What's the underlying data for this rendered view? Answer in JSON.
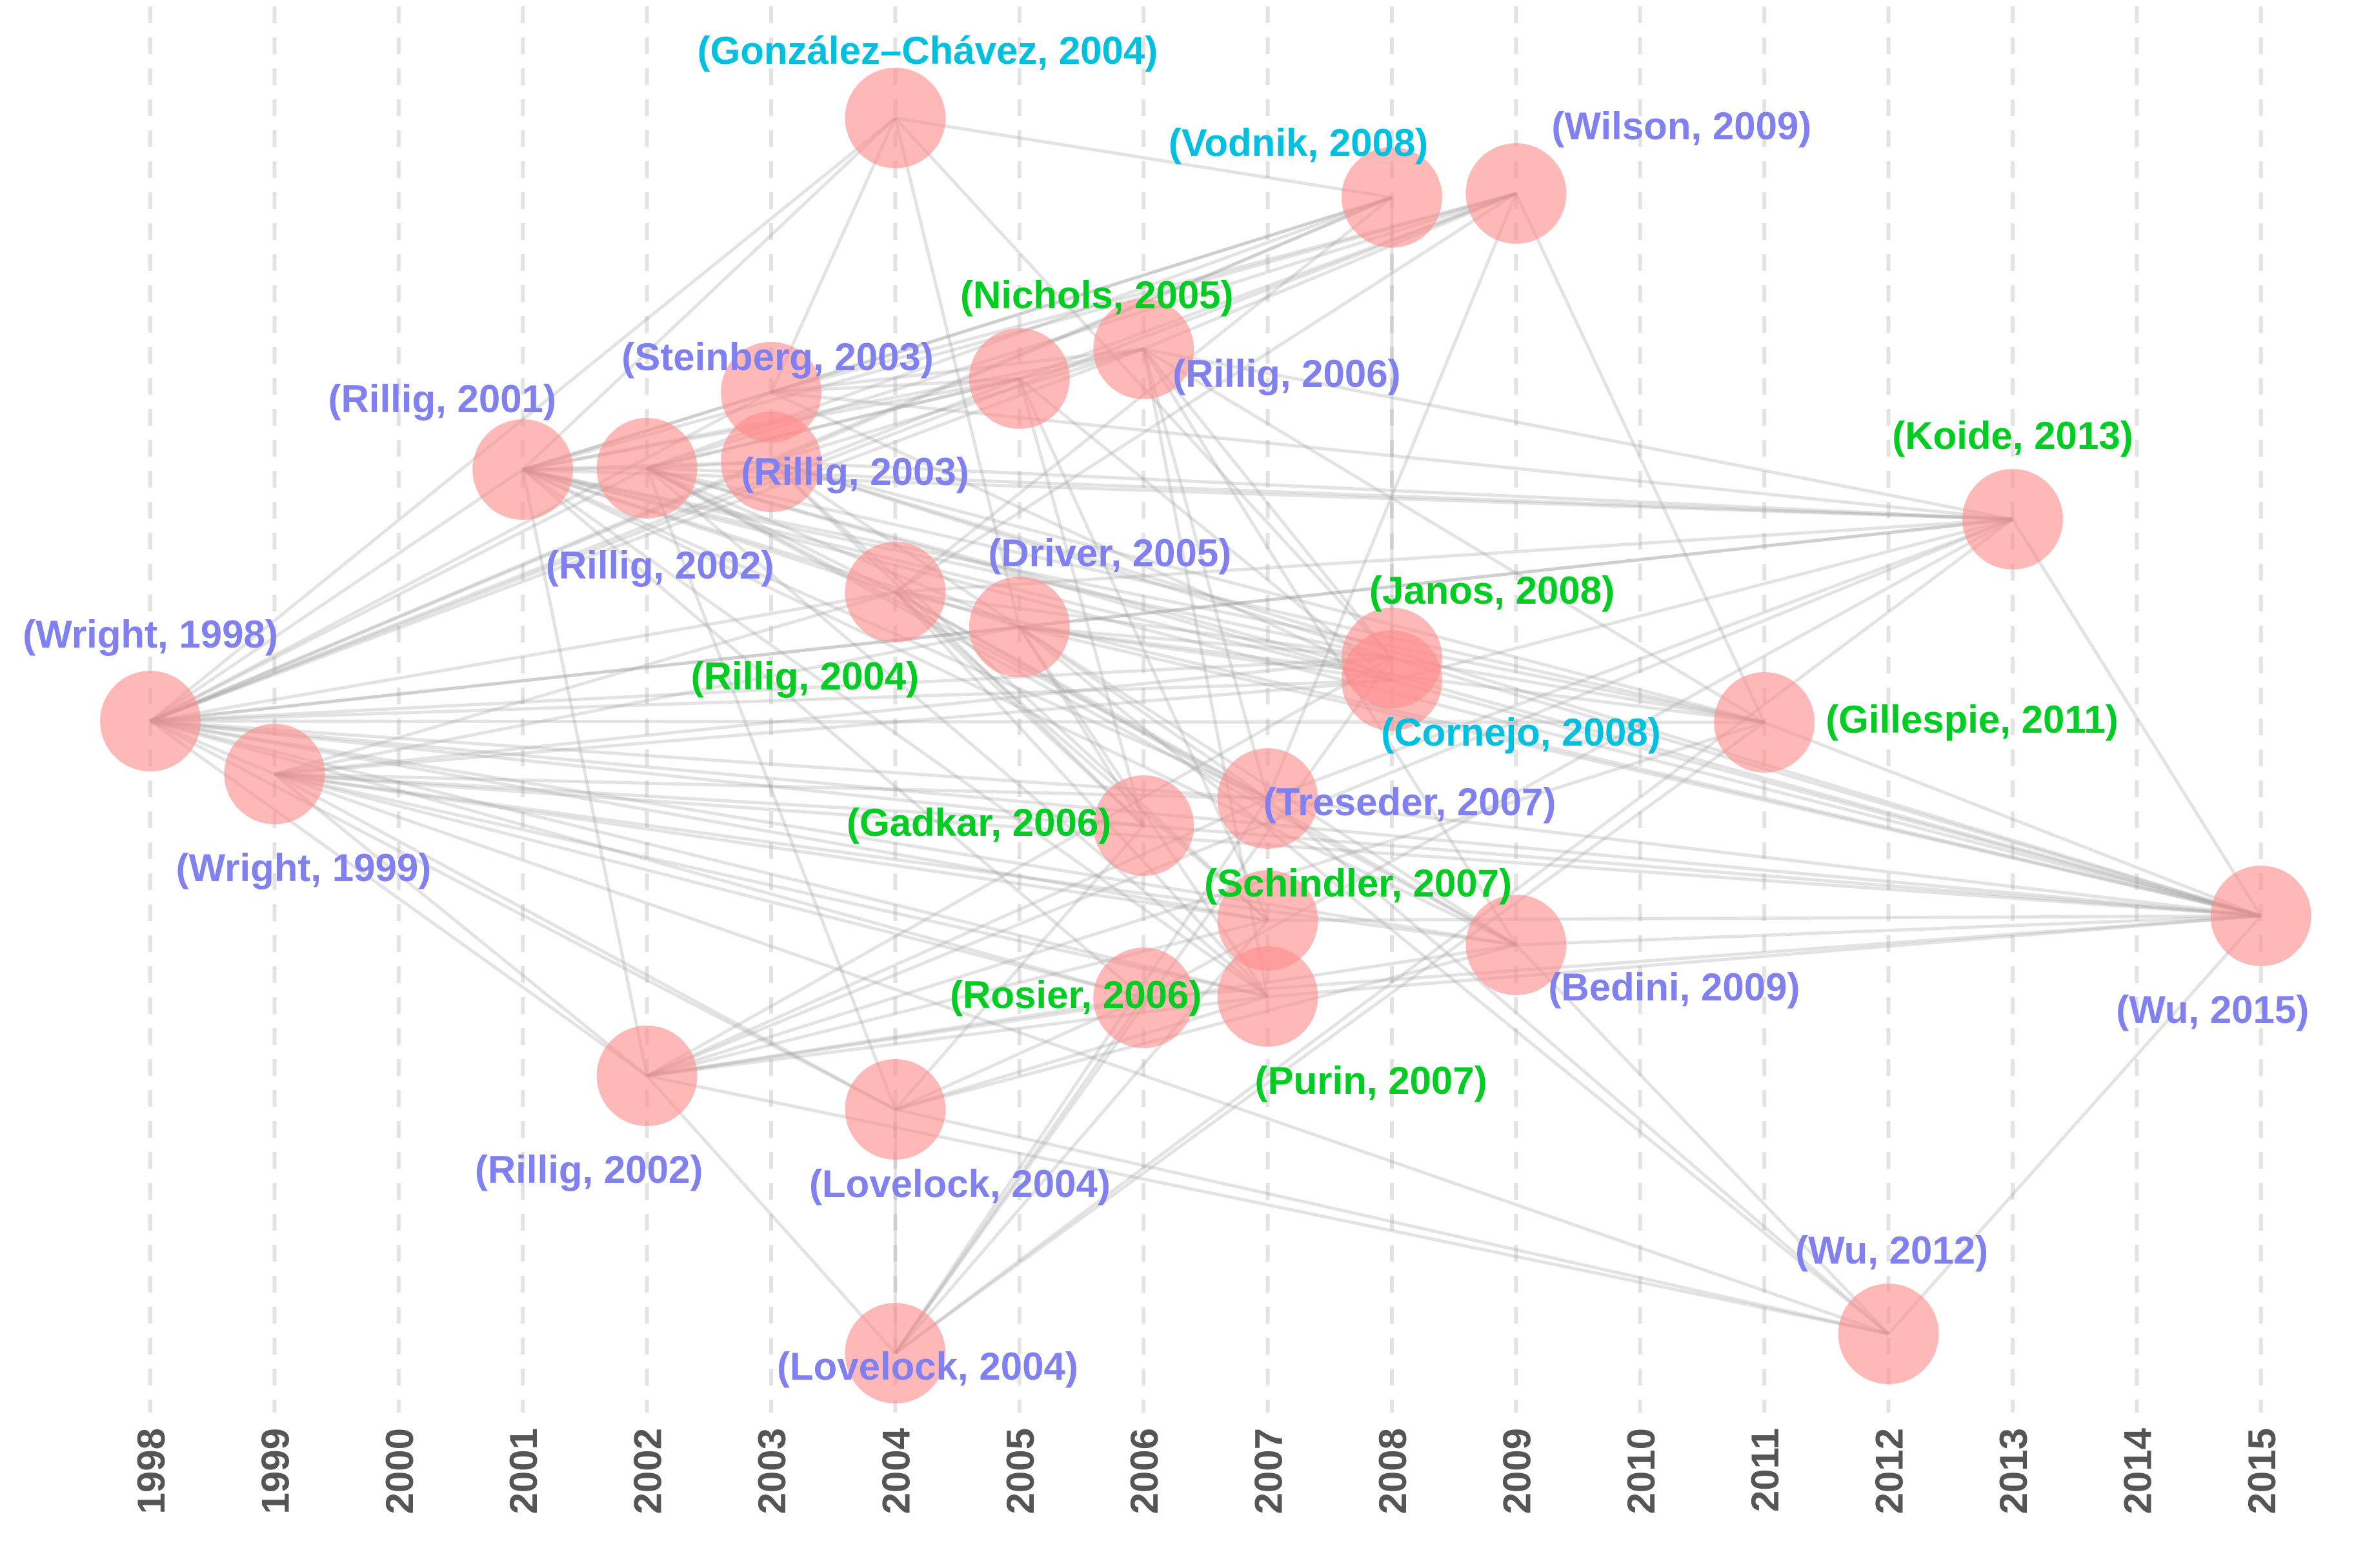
{
  "chart_data": {
    "type": "network",
    "title": "",
    "xlabel": "",
    "ylabel": "",
    "x_axis": {
      "min": 1998,
      "max": 2015,
      "ticks": [
        "1998",
        "1999",
        "2000",
        "2001",
        "2002",
        "2003",
        "2004",
        "2005",
        "2006",
        "2007",
        "2008",
        "2009",
        "2010",
        "2011",
        "2012",
        "2013",
        "2014",
        "2015"
      ]
    },
    "grid": true,
    "label_colors": {
      "blue": "#8080f0",
      "green": "#00cc22",
      "cyan": "#00c0e0"
    },
    "node_color": "#ff8c8c",
    "edge_color": "#9a9a9a",
    "nodes": [
      {
        "id": "wright1998",
        "label": "(Wright, 1998)",
        "year": 1998,
        "color": "blue"
      },
      {
        "id": "wright1999",
        "label": "(Wright, 1999)",
        "year": 1999,
        "color": "blue"
      },
      {
        "id": "rillig2001",
        "label": "(Rillig, 2001)",
        "year": 2001,
        "color": "blue"
      },
      {
        "id": "rillig2002a",
        "label": "(Rillig, 2002)",
        "year": 2002,
        "color": "blue"
      },
      {
        "id": "rillig2002b",
        "label": "(Rillig, 2002)",
        "year": 2002,
        "color": "blue"
      },
      {
        "id": "steinberg2003",
        "label": "(Steinberg, 2003)",
        "year": 2003,
        "color": "blue"
      },
      {
        "id": "rillig2003",
        "label": "(Rillig, 2003)",
        "year": 2003,
        "color": "blue"
      },
      {
        "id": "gonzalez2004",
        "label": "(González–Chávez, 2004)",
        "year": 2004,
        "color": "cyan"
      },
      {
        "id": "rillig2004",
        "label": "(Rillig, 2004)",
        "year": 2004,
        "color": "green"
      },
      {
        "id": "lovelock2004a",
        "label": "(Lovelock, 2004)",
        "year": 2004,
        "color": "blue"
      },
      {
        "id": "lovelock2004b",
        "label": "(Lovelock, 2004)",
        "year": 2004,
        "color": "blue"
      },
      {
        "id": "nichols2005",
        "label": "(Nichols, 2005)",
        "year": 2005,
        "color": "green"
      },
      {
        "id": "driver2005",
        "label": "(Driver, 2005)",
        "year": 2005,
        "color": "blue"
      },
      {
        "id": "rillig2006",
        "label": "(Rillig, 2006)",
        "year": 2006,
        "color": "blue"
      },
      {
        "id": "gadkar2006",
        "label": "(Gadkar, 2006)",
        "year": 2006,
        "color": "green"
      },
      {
        "id": "rosier2006",
        "label": "(Rosier, 2006)",
        "year": 2006,
        "color": "green"
      },
      {
        "id": "treseder2007",
        "label": "(Treseder, 2007)",
        "year": 2007,
        "color": "blue"
      },
      {
        "id": "schindler2007",
        "label": "(Schindler, 2007)",
        "year": 2007,
        "color": "green"
      },
      {
        "id": "purin2007",
        "label": "(Purin, 2007)",
        "year": 2007,
        "color": "green"
      },
      {
        "id": "vodnik2008",
        "label": "(Vodnik, 2008)",
        "year": 2008,
        "color": "cyan"
      },
      {
        "id": "janos2008",
        "label": "(Janos, 2008)",
        "year": 2008,
        "color": "green"
      },
      {
        "id": "cornejo2008",
        "label": "(Cornejo, 2008)",
        "year": 2008,
        "color": "cyan"
      },
      {
        "id": "wilson2009",
        "label": "(Wilson, 2009)",
        "year": 2009,
        "color": "blue"
      },
      {
        "id": "bedini2009",
        "label": "(Bedini, 2009)",
        "year": 2009,
        "color": "blue"
      },
      {
        "id": "gillespie2011",
        "label": "(Gillespie, 2011)",
        "year": 2011,
        "color": "green"
      },
      {
        "id": "wu2012",
        "label": "(Wu, 2012)",
        "year": 2012,
        "color": "blue"
      },
      {
        "id": "koide2013",
        "label": "(Koide, 2013)",
        "year": 2013,
        "color": "green"
      },
      {
        "id": "wu2015",
        "label": "(Wu, 2015)",
        "year": 2015,
        "color": "blue"
      }
    ],
    "edges": [
      [
        "wright1999",
        "wright1998"
      ],
      [
        "rillig2001",
        "wright1998"
      ],
      [
        "rillig2002a",
        "wright1998"
      ],
      [
        "rillig2002a",
        "rillig2001"
      ],
      [
        "rillig2002b",
        "wright1998"
      ],
      [
        "rillig2002b",
        "wright1999"
      ],
      [
        "rillig2002b",
        "rillig2001"
      ],
      [
        "steinberg2003",
        "wright1998"
      ],
      [
        "steinberg2003",
        "rillig2001"
      ],
      [
        "rillig2003",
        "wright1998"
      ],
      [
        "rillig2003",
        "rillig2001"
      ],
      [
        "rillig2003",
        "rillig2002a"
      ],
      [
        "gonzalez2004",
        "wright1998"
      ],
      [
        "gonzalez2004",
        "rillig2001"
      ],
      [
        "gonzalez2004",
        "steinberg2003"
      ],
      [
        "rillig2004",
        "wright1998"
      ],
      [
        "rillig2004",
        "wright1999"
      ],
      [
        "rillig2004",
        "rillig2001"
      ],
      [
        "rillig2004",
        "rillig2002a"
      ],
      [
        "lovelock2004a",
        "wright1998"
      ],
      [
        "lovelock2004a",
        "wright1999"
      ],
      [
        "lovelock2004a",
        "rillig2002a"
      ],
      [
        "lovelock2004b",
        "rillig2002b"
      ],
      [
        "lovelock2004b",
        "lovelock2004a"
      ],
      [
        "nichols2005",
        "wright1998"
      ],
      [
        "nichols2005",
        "rillig2001"
      ],
      [
        "nichols2005",
        "rillig2002a"
      ],
      [
        "nichols2005",
        "steinberg2003"
      ],
      [
        "driver2005",
        "wright1998"
      ],
      [
        "driver2005",
        "wright1999"
      ],
      [
        "driver2005",
        "rillig2001"
      ],
      [
        "driver2005",
        "rillig2002a"
      ],
      [
        "driver2005",
        "rillig2003"
      ],
      [
        "driver2005",
        "gonzalez2004"
      ],
      [
        "rillig2006",
        "wright1998"
      ],
      [
        "rillig2006",
        "rillig2001"
      ],
      [
        "rillig2006",
        "rillig2002a"
      ],
      [
        "rillig2006",
        "steinberg2003"
      ],
      [
        "rillig2006",
        "rillig2003"
      ],
      [
        "gadkar2006",
        "wright1998"
      ],
      [
        "gadkar2006",
        "wright1999"
      ],
      [
        "gadkar2006",
        "rillig2003"
      ],
      [
        "gadkar2006",
        "rillig2004"
      ],
      [
        "gadkar2006",
        "lovelock2004a"
      ],
      [
        "gadkar2006",
        "nichols2005"
      ],
      [
        "gadkar2006",
        "driver2005"
      ],
      [
        "rosier2006",
        "wright1998"
      ],
      [
        "rosier2006",
        "wright1999"
      ],
      [
        "rosier2006",
        "rillig2001"
      ],
      [
        "rosier2006",
        "rillig2002b"
      ],
      [
        "rosier2006",
        "lovelock2004a"
      ],
      [
        "rosier2006",
        "lovelock2004b"
      ],
      [
        "treseder2007",
        "wright1998"
      ],
      [
        "treseder2007",
        "wright1999"
      ],
      [
        "treseder2007",
        "rillig2001"
      ],
      [
        "treseder2007",
        "rillig2002a"
      ],
      [
        "treseder2007",
        "rillig2004"
      ],
      [
        "treseder2007",
        "driver2005"
      ],
      [
        "treseder2007",
        "rillig2006"
      ],
      [
        "treseder2007",
        "rillig2002b"
      ],
      [
        "treseder2007",
        "lovelock2004b"
      ],
      [
        "schindler2007",
        "wright1998"
      ],
      [
        "schindler2007",
        "wright1999"
      ],
      [
        "schindler2007",
        "rillig2003"
      ],
      [
        "schindler2007",
        "rillig2004"
      ],
      [
        "schindler2007",
        "nichols2005"
      ],
      [
        "schindler2007",
        "rillig2002b"
      ],
      [
        "schindler2007",
        "lovelock2004b"
      ],
      [
        "purin2007",
        "wright1998"
      ],
      [
        "purin2007",
        "wright1999"
      ],
      [
        "purin2007",
        "rillig2001"
      ],
      [
        "purin2007",
        "rillig2002a"
      ],
      [
        "purin2007",
        "rillig2004"
      ],
      [
        "purin2007",
        "driver2005"
      ],
      [
        "purin2007",
        "rillig2006"
      ],
      [
        "purin2007",
        "lovelock2004a"
      ],
      [
        "purin2007",
        "rillig2002b"
      ],
      [
        "vodnik2008",
        "wright1998"
      ],
      [
        "vodnik2008",
        "rillig2001"
      ],
      [
        "vodnik2008",
        "rillig2002a"
      ],
      [
        "vodnik2008",
        "steinberg2003"
      ],
      [
        "vodnik2008",
        "rillig2003"
      ],
      [
        "vodnik2008",
        "gonzalez2004"
      ],
      [
        "vodnik2008",
        "rillig2004"
      ],
      [
        "janos2008",
        "wright1998"
      ],
      [
        "janos2008",
        "wright1999"
      ],
      [
        "janos2008",
        "rillig2001"
      ],
      [
        "janos2008",
        "rillig2003"
      ],
      [
        "janos2008",
        "gonzalez2004"
      ],
      [
        "janos2008",
        "rillig2004"
      ],
      [
        "janos2008",
        "driver2005"
      ],
      [
        "janos2008",
        "rillig2006"
      ],
      [
        "janos2008",
        "rillig2002b"
      ],
      [
        "janos2008",
        "lovelock2004b"
      ],
      [
        "cornejo2008",
        "wright1998"
      ],
      [
        "cornejo2008",
        "wright1999"
      ],
      [
        "cornejo2008",
        "rillig2001"
      ],
      [
        "cornejo2008",
        "rillig2002a"
      ],
      [
        "cornejo2008",
        "steinberg2003"
      ],
      [
        "cornejo2008",
        "nichols2005"
      ],
      [
        "cornejo2008",
        "driver2005"
      ],
      [
        "cornejo2008",
        "vodnik2008"
      ],
      [
        "wilson2009",
        "wright1998"
      ],
      [
        "wilson2009",
        "rillig2001"
      ],
      [
        "wilson2009",
        "rillig2002a"
      ],
      [
        "wilson2009",
        "steinberg2003"
      ],
      [
        "wilson2009",
        "nichols2005"
      ],
      [
        "wilson2009",
        "rillig2004"
      ],
      [
        "wilson2009",
        "rillig2006"
      ],
      [
        "wilson2009",
        "treseder2007"
      ],
      [
        "bedini2009",
        "wright1998"
      ],
      [
        "bedini2009",
        "wright1999"
      ],
      [
        "bedini2009",
        "rillig2001"
      ],
      [
        "bedini2009",
        "rillig2002a"
      ],
      [
        "bedini2009",
        "rillig2004"
      ],
      [
        "bedini2009",
        "driver2005"
      ],
      [
        "bedini2009",
        "rillig2006"
      ],
      [
        "bedini2009",
        "lovelock2004a"
      ],
      [
        "bedini2009",
        "rillig2002b"
      ],
      [
        "gillespie2011",
        "wright1998"
      ],
      [
        "gillespie2011",
        "rillig2001"
      ],
      [
        "gillespie2011",
        "rillig2002a"
      ],
      [
        "gillespie2011",
        "rillig2003"
      ],
      [
        "gillespie2011",
        "driver2005"
      ],
      [
        "gillespie2011",
        "rillig2006"
      ],
      [
        "gillespie2011",
        "janos2008"
      ],
      [
        "gillespie2011",
        "wilson2009"
      ],
      [
        "gillespie2011",
        "rillig2002b"
      ],
      [
        "gillespie2011",
        "lovelock2004b"
      ],
      [
        "wu2012",
        "wright1999"
      ],
      [
        "wu2012",
        "rillig2002b"
      ],
      [
        "wu2012",
        "lovelock2004a"
      ],
      [
        "wu2012",
        "driver2005"
      ],
      [
        "wu2012",
        "treseder2007"
      ],
      [
        "wu2012",
        "bedini2009"
      ],
      [
        "koide2013",
        "wright1998"
      ],
      [
        "koide2013",
        "rillig2001"
      ],
      [
        "koide2013",
        "rillig2002a"
      ],
      [
        "koide2013",
        "rillig2003"
      ],
      [
        "koide2013",
        "steinberg2003"
      ],
      [
        "koide2013",
        "rillig2004"
      ],
      [
        "koide2013",
        "driver2005"
      ],
      [
        "koide2013",
        "rillig2006"
      ],
      [
        "koide2013",
        "treseder2007"
      ],
      [
        "koide2013",
        "cornejo2008"
      ],
      [
        "koide2013",
        "rosier2006"
      ],
      [
        "koide2013",
        "lovelock2004b"
      ],
      [
        "koide2013",
        "rillig2002b"
      ],
      [
        "wu2015",
        "wright1998"
      ],
      [
        "wu2015",
        "wright1999"
      ],
      [
        "wu2015",
        "rillig2001"
      ],
      [
        "wu2015",
        "rillig2002a"
      ],
      [
        "wu2015",
        "rillig2003"
      ],
      [
        "wu2015",
        "rillig2004"
      ],
      [
        "wu2015",
        "driver2005"
      ],
      [
        "wu2015",
        "gadkar2006"
      ],
      [
        "wu2015",
        "rosier2006"
      ],
      [
        "wu2015",
        "treseder2007"
      ],
      [
        "wu2015",
        "schindler2007"
      ],
      [
        "wu2015",
        "purin2007"
      ],
      [
        "wu2015",
        "janos2008"
      ],
      [
        "wu2015",
        "cornejo2008"
      ],
      [
        "wu2015",
        "bedini2009"
      ],
      [
        "wu2015",
        "gillespie2011"
      ],
      [
        "wu2015",
        "wu2012"
      ],
      [
        "wu2015",
        "koide2013"
      ]
    ]
  }
}
